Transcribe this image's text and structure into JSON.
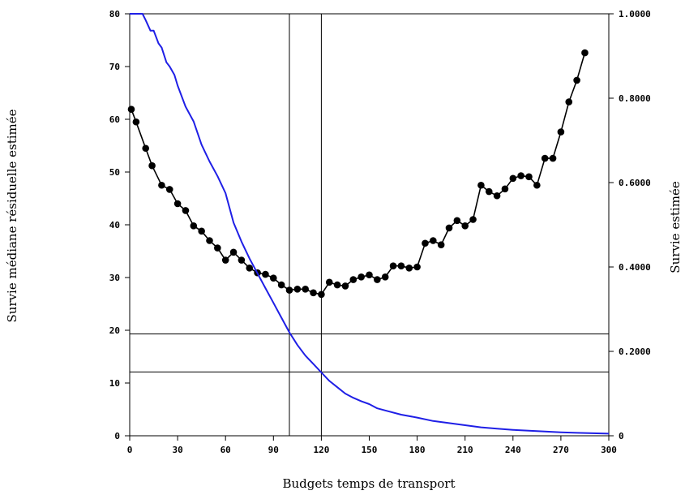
{
  "chart_data": {
    "type": "line",
    "title": "",
    "xlabel": "Budgets temps de transport",
    "ylabel_left": "Survie médiane résiduelle estimée",
    "ylabel_right": "Survie estimée",
    "xlim": [
      0,
      300
    ],
    "ylim_left": [
      0,
      80
    ],
    "ylim_right": [
      0,
      1
    ],
    "x_ticks": [
      0,
      30,
      60,
      90,
      120,
      150,
      180,
      210,
      240,
      270,
      300
    ],
    "x_tick_labels": [
      "0",
      "30",
      "60",
      "90",
      "120",
      "150",
      "180",
      "210",
      "240",
      "270",
      "300"
    ],
    "y_left_ticks": [
      0,
      10,
      20,
      30,
      40,
      50,
      60,
      70,
      80
    ],
    "y_left_tick_labels": [
      "0",
      "10",
      "20",
      "30",
      "40",
      "50",
      "60",
      "70",
      "80"
    ],
    "y_right_ticks": [
      0,
      0.2,
      0.4,
      0.6,
      0.8,
      1.0
    ],
    "y_right_tick_labels": [
      "0",
      "0.2000",
      "0.4000",
      "0.6000",
      "0.8000",
      "1.0000"
    ],
    "grid": false,
    "legend": "none",
    "reference_lines": {
      "vertical_x": [
        100,
        120
      ],
      "horizontal_y_left": [
        19.3,
        12.1
      ]
    },
    "series": [
      {
        "axis": "left",
        "color": "#000000",
        "marker": "circle",
        "x": [
          1,
          4,
          10,
          14,
          20,
          25,
          30,
          35,
          40,
          45,
          50,
          55,
          60,
          65,
          70,
          75,
          80,
          85,
          90,
          95,
          100,
          105,
          110,
          115,
          120,
          125,
          130,
          135,
          140,
          145,
          150,
          155,
          160,
          165,
          170,
          175,
          180,
          185,
          190,
          195,
          200,
          205,
          210,
          215,
          220,
          225,
          230,
          235,
          240,
          245,
          250,
          255,
          260,
          265,
          270,
          275,
          280,
          285
        ],
        "y": [
          61.9,
          59.5,
          54.5,
          51.2,
          47.5,
          46.7,
          44.0,
          42.7,
          39.8,
          38.8,
          37.0,
          35.6,
          33.3,
          34.8,
          33.3,
          31.8,
          30.9,
          30.6,
          29.9,
          28.6,
          27.6,
          27.8,
          27.8,
          27.1,
          26.8,
          29.1,
          28.6,
          28.4,
          29.6,
          30.1,
          30.5,
          29.6,
          30.1,
          32.2,
          32.2,
          31.8,
          32.0,
          36.5,
          37.0,
          36.2,
          39.4,
          40.8,
          39.8,
          41.0,
          47.5,
          46.3,
          45.5,
          46.8,
          48.8,
          49.3,
          49.1,
          47.5,
          52.6,
          52.6,
          57.6,
          63.3,
          67.4,
          72.6
        ]
      },
      {
        "axis": "right",
        "color": "#1f1fe6",
        "marker": "none",
        "x": [
          0,
          5,
          8,
          10,
          13,
          15,
          18,
          20,
          23,
          25,
          28,
          30,
          35,
          40,
          45,
          50,
          55,
          60,
          65,
          70,
          75,
          80,
          85,
          90,
          95,
          100,
          105,
          110,
          115,
          120,
          125,
          130,
          135,
          140,
          145,
          150,
          155,
          160,
          170,
          180,
          190,
          200,
          210,
          220,
          230,
          240,
          250,
          260,
          270,
          280,
          290,
          300
        ],
        "y": [
          1.0,
          1.0,
          1.0,
          0.985,
          0.96,
          0.96,
          0.93,
          0.92,
          0.885,
          0.875,
          0.855,
          0.83,
          0.78,
          0.745,
          0.69,
          0.65,
          0.615,
          0.575,
          0.505,
          0.46,
          0.42,
          0.385,
          0.35,
          0.315,
          0.28,
          0.245,
          0.215,
          0.19,
          0.17,
          0.15,
          0.13,
          0.115,
          0.1,
          0.09,
          0.082,
          0.075,
          0.065,
          0.06,
          0.05,
          0.043,
          0.035,
          0.03,
          0.025,
          0.02,
          0.017,
          0.014,
          0.012,
          0.01,
          0.008,
          0.007,
          0.006,
          0.005
        ]
      }
    ]
  }
}
